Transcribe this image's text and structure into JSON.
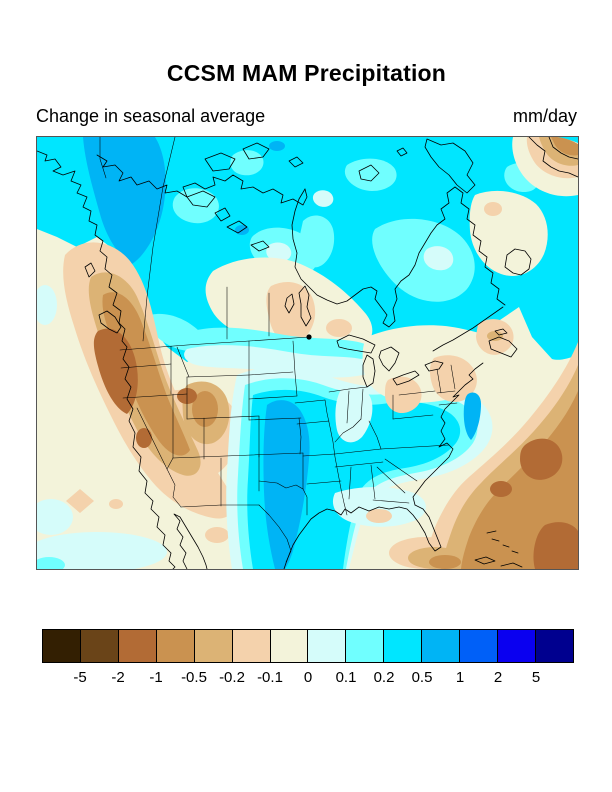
{
  "header": {
    "title": "CCSM MAM Precipitation",
    "subtitle": "Change in seasonal average",
    "units": "mm/day"
  },
  "colorbar": {
    "tick_labels": [
      "-5",
      "-2",
      "-1",
      "-0.5",
      "-0.2",
      "-0.1",
      "0",
      "0.1",
      "0.2",
      "0.5",
      "1",
      "2",
      "5"
    ],
    "colors": [
      "#331f02",
      "#6a4418",
      "#b26b35",
      "#ca9250",
      "#dcb375",
      "#f4d2ac",
      "#f3f3da",
      "#d5fcfa",
      "#70ffff",
      "#00e6ff",
      "#00b4f5",
      "#0060f8",
      "#0a00f0",
      "#00008f"
    ]
  },
  "palette": {
    "n5": "#331f02",
    "n2": "#6a4418",
    "n1": "#b26b35",
    "n05": "#ca9250",
    "n02": "#dcb375",
    "n01": "#f4d2ac",
    "z0": "#f3f3da",
    "p01": "#d5fcfa",
    "p02": "#70ffff",
    "p05": "#00e6ff",
    "p1": "#00b4f5",
    "p2": "#0060f8",
    "p5": "#0a00f0",
    "p5plus": "#00008f",
    "coastline": "#000000",
    "frame": "#555555"
  }
}
